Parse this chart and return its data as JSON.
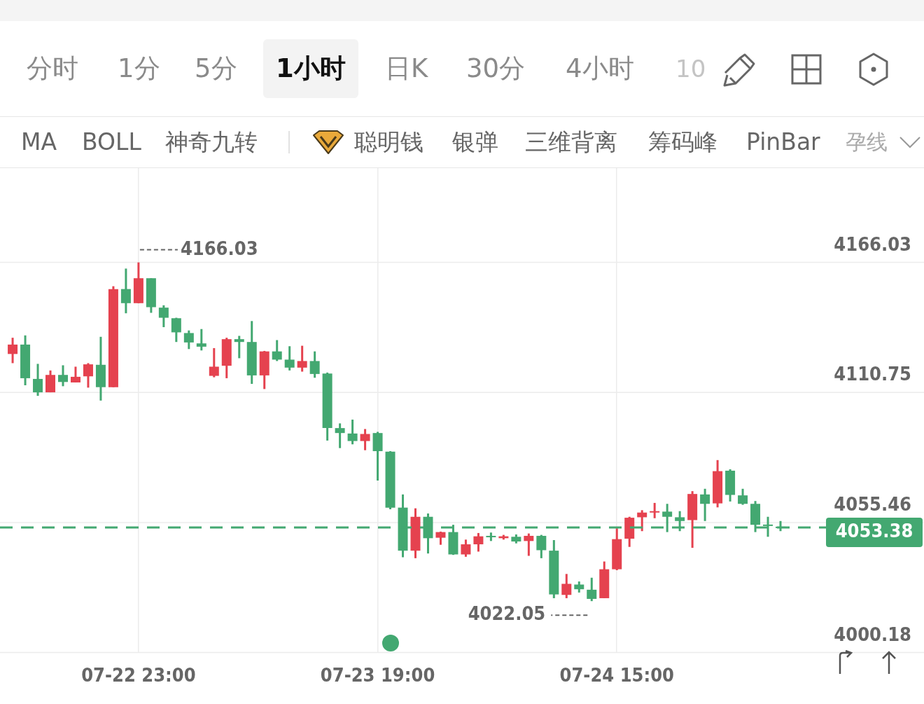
{
  "chart_data": {
    "type": "candlestick",
    "annotations": [
      "分时",
      "1分",
      "5分",
      "1小时",
      "日K",
      "30分",
      "4小时",
      "10",
      "MA",
      "BOLL",
      "神奇九转",
      "聪明钱",
      "银弹",
      "三维背离",
      "筹码峰",
      "PinBar",
      "孕线",
      {
        "text": "4166.03",
        "x": "07-22 23:00",
        "y": 4166.03
      },
      "4022.05"
    ],
    "categories": [
      null,
      null,
      null,
      null,
      null,
      null,
      null,
      null,
      null,
      null,
      "07-22 23:00",
      null,
      null,
      null,
      null,
      null,
      null,
      null,
      null,
      null,
      null,
      null,
      null,
      null,
      null,
      null,
      null,
      null,
      null,
      "07-23 19:00",
      null,
      null,
      null,
      null,
      null,
      null,
      null,
      null,
      null,
      null,
      null,
      null,
      null,
      null,
      null,
      null,
      null,
      null,
      "07-24 15:00",
      null,
      null,
      null,
      null,
      null,
      null,
      null,
      null,
      null,
      null,
      null,
      null,
      null
    ],
    "ohlc": [
      [
        4127.1,
        4134.0,
        4123.2,
        4131.1
      ],
      [
        4131.1,
        4135.0,
        4113.8,
        4116.8
      ],
      [
        4116.5,
        4122.9,
        4109.3,
        4110.8
      ],
      [
        4110.8,
        4120.1,
        4110.8,
        4118.2
      ],
      [
        4118.2,
        4122.3,
        4113.4,
        4115.2
      ],
      [
        4115.0,
        4121.7,
        4115.0,
        4117.4
      ],
      [
        4117.6,
        4123.2,
        4112.8,
        4122.7
      ],
      [
        4122.5,
        4134.4,
        4107.3,
        4113.0
      ],
      [
        4113.0,
        4155.9,
        4113.0,
        4154.7
      ],
      [
        4154.7,
        4163.4,
        4144.4,
        4148.7
      ],
      [
        4148.7,
        4166.03,
        4148.7,
        4159.3
      ],
      [
        4159.3,
        4159.3,
        4144.6,
        4147.0
      ],
      [
        4146.8,
        4147.8,
        4138.5,
        4142.5
      ],
      [
        4142.3,
        4142.5,
        4132.2,
        4136.3
      ],
      [
        4136.0,
        4137.1,
        4129.2,
        4132.0
      ],
      [
        4131.6,
        4137.7,
        4128.6,
        4130.2
      ],
      [
        4117.8,
        4129.6,
        4117.2,
        4121.7
      ],
      [
        4122.1,
        4134.0,
        4116.8,
        4133.4
      ],
      [
        4133.4,
        4134.8,
        4125.3,
        4132.2
      ],
      [
        4132.2,
        4141.1,
        4114.4,
        4118.0
      ],
      [
        4118.0,
        4128.4,
        4112.2,
        4128.2
      ],
      [
        4128.2,
        4133.0,
        4124.1,
        4124.7
      ],
      [
        4124.7,
        4130.4,
        4120.1,
        4121.3
      ],
      [
        4121.3,
        4130.6,
        4119.6,
        4124.1
      ],
      [
        4124.1,
        4128.2,
        4117.0,
        4118.6
      ],
      [
        4118.8,
        4119.2,
        4090.3,
        4095.6
      ],
      [
        4095.6,
        4097.6,
        4087.1,
        4093.5
      ],
      [
        4093.3,
        4099.2,
        4088.7,
        4090.1
      ],
      [
        4090.1,
        4095.2,
        4086.2,
        4093.1
      ],
      [
        4093.5,
        4094.0,
        4073.3,
        4085.8
      ],
      [
        4085.6,
        4085.8,
        4061.1,
        4061.8
      ],
      [
        4061.8,
        4067.4,
        4040.7,
        4043.5
      ],
      [
        4043.5,
        4061.5,
        4040.3,
        4057.9
      ],
      [
        4057.9,
        4059.3,
        4042.3,
        4048.8
      ],
      [
        4049.0,
        4051.6,
        4046.0,
        4051.4
      ],
      [
        4051.4,
        4054.5,
        4041.7,
        4041.9
      ],
      [
        4041.9,
        4048.2,
        4040.9,
        4046.2
      ],
      [
        4046.2,
        4051.0,
        4043.1,
        4049.6
      ],
      [
        4049.8,
        4051.2,
        4047.6,
        4049.2
      ],
      [
        4048.8,
        4050.2,
        4048.2,
        4049.6
      ],
      [
        4049.4,
        4050.4,
        4046.6,
        4047.4
      ],
      [
        4047.6,
        4050.8,
        4041.3,
        4049.8
      ],
      [
        4049.8,
        4050.2,
        4040.3,
        4043.7
      ],
      [
        4043.5,
        4048.0,
        4023.3,
        4024.9
      ],
      [
        4024.7,
        4033.6,
        4023.3,
        4029.4
      ],
      [
        4029.1,
        4030.4,
        4025.7,
        4027.1
      ],
      [
        4026.9,
        4032.0,
        4022.05,
        4023.0
      ],
      [
        4023.3,
        4038.9,
        4023.3,
        4035.6
      ],
      [
        4035.6,
        4053.0,
        4035.2,
        4048.4
      ],
      [
        4048.6,
        4057.9,
        4045.1,
        4057.5
      ],
      [
        4057.7,
        4060.7,
        4051.8,
        4059.7
      ],
      [
        4059.7,
        4063.8,
        4057.3,
        4060.3
      ],
      [
        4060.1,
        4063.4,
        4051.4,
        4057.9
      ],
      [
        4057.7,
        4060.3,
        4051.8,
        4056.1
      ],
      [
        4056.5,
        4068.8,
        4044.7,
        4067.6
      ],
      [
        4067.4,
        4069.8,
        4056.1,
        4063.4
      ],
      [
        4063.6,
        4082.0,
        4061.9,
        4077.3
      ],
      [
        4077.5,
        4078.1,
        4064.4,
        4067.2
      ],
      [
        4067.0,
        4069.8,
        4063.0,
        4063.4
      ],
      [
        4063.4,
        4064.6,
        4051.4,
        4054.5
      ],
      [
        4054.6,
        4057.9,
        4049.4,
        4054.0
      ],
      [
        4053.7,
        4056.1,
        4051.8,
        4053.38
      ]
    ],
    "colors": [
      "#e5424f",
      "#43a871",
      "#43a871",
      "#e5424f",
      "#43a871",
      "#e5424f",
      "#e5424f",
      "#43a871",
      "#e5424f",
      "#43a871",
      "#e5424f",
      "#43a871",
      "#43a871",
      "#43a871",
      "#43a871",
      "#43a871",
      "#e5424f",
      "#e5424f",
      "#43a871",
      "#43a871",
      "#e5424f",
      "#43a871",
      "#43a871",
      "#e5424f",
      "#43a871",
      "#43a871",
      "#43a871",
      "#43a871",
      "#e5424f",
      "#43a871",
      "#43a871",
      "#43a871",
      "#e5424f",
      "#43a871",
      "#e5424f",
      "#43a871",
      "#e5424f",
      "#e5424f",
      "#43a871",
      "#e5424f",
      "#43a871",
      "#e5424f",
      "#43a871",
      "#43a871",
      "#e5424f",
      "#43a871",
      "#43a871",
      "#e5424f",
      "#e5424f",
      "#e5424f",
      "#e5424f",
      "#e5424f",
      "#43a871",
      "#43a871",
      "#e5424f",
      "#43a871",
      "#e5424f",
      "#43a871",
      "#43a871",
      "#43a871",
      "#43a871",
      "#43a871"
    ],
    "ylim": [
      4000.18,
      4206.1
    ],
    "yticks": [
      4000.18,
      4055.46,
      4110.75,
      4166.03
    ],
    "grid": true,
    "ref_lines": [
      {
        "axis": "y",
        "value": 4053.38,
        "label": "4053.38",
        "color": "#43a871",
        "line_style": "dashed"
      }
    ]
  }
}
